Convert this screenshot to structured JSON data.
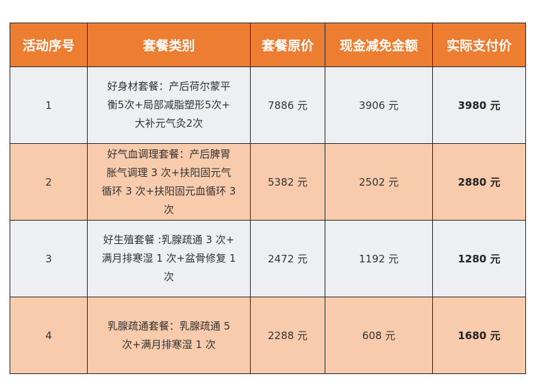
{
  "colors": {
    "header": "#ED7D31",
    "row_odd": "#EEEFF2",
    "row_even": "#F8CBAD"
  },
  "headers": [
    "活动序号",
    "套餐类别",
    "套餐原价",
    "现金减免金额",
    "实际支付价"
  ],
  "rows": [
    {
      "no": "1",
      "desc": [
        "好身材套餐：产后荷尔蒙平",
        "衡5次+局部减脂塑形5次+",
        "大补元气灸2次"
      ],
      "price": "7886 元",
      "discount": "3906 元",
      "pay": "3980 元"
    },
    {
      "no": "2",
      "desc": [
        "好气血调理套餐：产后脾胃",
        "胀气调理 3 次+扶阳固元气",
        "循环 3 次+扶阳固元血循环 3",
        "次"
      ],
      "price": "5382 元",
      "discount": "2502 元",
      "pay": "2880 元"
    },
    {
      "no": "3",
      "desc": [
        "好生殖套餐 :乳腺疏通 3 次+",
        "满月排寒湿 1 次+盆骨修复 1",
        "次"
      ],
      "price": "2472 元",
      "discount": "1192 元",
      "pay": "1280 元"
    },
    {
      "no": "4",
      "desc": [
        "乳腺疏通套餐：乳腺疏通 5",
        "次+满月排寒湿 1 次"
      ],
      "price": "2288 元",
      "discount": "608 元",
      "pay": "1680 元"
    }
  ]
}
